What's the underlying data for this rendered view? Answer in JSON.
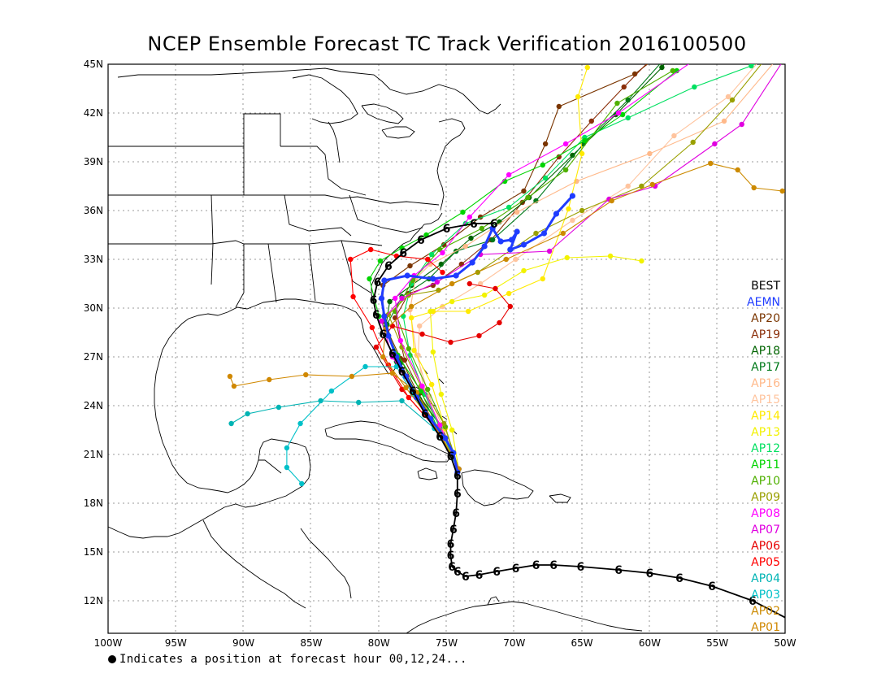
{
  "title": "NCEP Ensemble Forecast TC Track Verification 2016100500",
  "footnote": "Indicates a position at forecast hour 00,12,24...",
  "axes": {
    "x_ticks": [
      "100W",
      "95W",
      "90W",
      "85W",
      "80W",
      "75W",
      "70W",
      "65W",
      "60W",
      "55W",
      "50W"
    ],
    "y_ticks": [
      "45N",
      "42N",
      "39N",
      "36N",
      "33N",
      "30N",
      "27N",
      "24N",
      "21N",
      "18N",
      "15N",
      "12N"
    ]
  },
  "legend": [
    {
      "label": "BEST",
      "color": "#000000"
    },
    {
      "label": "AEMN",
      "color": "#1f3cff"
    },
    {
      "label": "AP20",
      "color": "#7a3500"
    },
    {
      "label": "AP19",
      "color": "#8b2f0a"
    },
    {
      "label": "AP18",
      "color": "#006400"
    },
    {
      "label": "AP17",
      "color": "#007a1a"
    },
    {
      "label": "AP16",
      "color": "#ffb98a"
    },
    {
      "label": "AP15",
      "color": "#ffc49e"
    },
    {
      "label": "AP14",
      "color": "#ffea00"
    },
    {
      "label": "AP13",
      "color": "#f2f200"
    },
    {
      "label": "AP12",
      "color": "#00e060"
    },
    {
      "label": "AP11",
      "color": "#00d400"
    },
    {
      "label": "AP10",
      "color": "#4fb000"
    },
    {
      "label": "AP09",
      "color": "#9aa000"
    },
    {
      "label": "AP08",
      "color": "#ff00ff"
    },
    {
      "label": "AP07",
      "color": "#e000e0"
    },
    {
      "label": "AP06",
      "color": "#e60000"
    },
    {
      "label": "AP05",
      "color": "#ff0000"
    },
    {
      "label": "AP04",
      "color": "#00b4b4"
    },
    {
      "label": "AP03",
      "color": "#00c0c8"
    },
    {
      "label": "AP02",
      "color": "#cc8a00"
    },
    {
      "label": "AP01",
      "color": "#d08800"
    }
  ],
  "tracks": {
    "BEST": [
      [
        -49.6,
        10.8
      ],
      [
        -52.4,
        12.0
      ],
      [
        -55.4,
        12.9
      ],
      [
        -57.8,
        13.4
      ],
      [
        -60.0,
        13.7
      ],
      [
        -62.3,
        13.9
      ],
      [
        -65.1,
        14.1
      ],
      [
        -67.1,
        14.2
      ],
      [
        -68.4,
        14.2
      ],
      [
        -69.9,
        14.0
      ],
      [
        -71.3,
        13.8
      ],
      [
        -72.6,
        13.6
      ],
      [
        -73.6,
        13.5
      ],
      [
        -74.2,
        13.8
      ],
      [
        -74.6,
        14.1
      ],
      [
        -74.7,
        14.8
      ],
      [
        -74.7,
        15.5
      ],
      [
        -74.5,
        16.4
      ],
      [
        -74.3,
        17.4
      ],
      [
        -74.2,
        18.6
      ],
      [
        -74.2,
        19.7
      ],
      [
        -74.7,
        20.9
      ],
      [
        -75.5,
        22.1
      ],
      [
        -76.6,
        23.5
      ],
      [
        -77.5,
        24.9
      ],
      [
        -78.3,
        26.1
      ],
      [
        -79.0,
        27.2
      ],
      [
        -79.7,
        28.4
      ],
      [
        -80.2,
        29.6
      ],
      [
        -80.4,
        30.5
      ],
      [
        -80.1,
        31.6
      ],
      [
        -79.3,
        32.6
      ],
      [
        -78.2,
        33.4
      ],
      [
        -76.9,
        34.2
      ],
      [
        -75.0,
        34.9
      ],
      [
        -73.0,
        35.2
      ],
      [
        -71.5,
        35.2
      ]
    ],
    "AEMN": [
      [
        -74.2,
        19.9
      ],
      [
        -74.5,
        21.1
      ],
      [
        -75.1,
        22.0
      ],
      [
        -76.2,
        23.2
      ],
      [
        -77.2,
        24.5
      ],
      [
        -78.0,
        25.8
      ],
      [
        -78.7,
        27.0
      ],
      [
        -79.3,
        28.3
      ],
      [
        -79.6,
        29.5
      ],
      [
        -79.8,
        30.6
      ],
      [
        -79.6,
        31.7
      ],
      [
        -77.9,
        32.0
      ],
      [
        -76.0,
        31.8
      ],
      [
        -74.3,
        32.0
      ],
      [
        -73.1,
        32.8
      ],
      [
        -72.2,
        33.8
      ],
      [
        -71.6,
        34.9
      ],
      [
        -71.0,
        34.1
      ],
      [
        -70.2,
        34.2
      ],
      [
        -69.8,
        34.7
      ],
      [
        -70.3,
        33.6
      ],
      [
        -69.3,
        33.9
      ],
      [
        -67.8,
        34.6
      ],
      [
        -66.9,
        35.8
      ],
      [
        -65.7,
        36.9
      ]
    ],
    "AP01": [
      [
        -74.1,
        20.1
      ],
      [
        -75.6,
        22.5
      ],
      [
        -77.2,
        24.8
      ],
      [
        -79.0,
        26.0
      ],
      [
        -82.0,
        25.8
      ],
      [
        -85.4,
        25.9
      ],
      [
        -88.1,
        25.6
      ],
      [
        -90.7,
        25.2
      ],
      [
        -91.0,
        25.8
      ]
    ],
    "AP02": [
      [
        -74.1,
        20.1
      ],
      [
        -75.8,
        22.7
      ],
      [
        -78.0,
        25.1
      ],
      [
        -79.7,
        27.0
      ],
      [
        -79.5,
        28.7
      ],
      [
        -77.6,
        30.1
      ],
      [
        -74.6,
        31.5
      ],
      [
        -70.6,
        33.0
      ],
      [
        -66.4,
        34.6
      ],
      [
        -62.8,
        36.6
      ],
      [
        -59.8,
        37.6
      ],
      [
        -55.5,
        38.9
      ],
      [
        -53.5,
        38.5
      ],
      [
        -52.3,
        37.4
      ],
      [
        -50.2,
        37.2
      ]
    ],
    "AP03": [
      [
        -74.1,
        20.1
      ],
      [
        -75.9,
        22.6
      ],
      [
        -77.5,
        24.7
      ],
      [
        -78.7,
        26.4
      ],
      [
        -81.0,
        26.4
      ],
      [
        -83.5,
        24.9
      ],
      [
        -85.8,
        22.9
      ],
      [
        -86.8,
        21.4
      ],
      [
        -86.8,
        20.2
      ],
      [
        -85.7,
        19.2
      ]
    ],
    "AP04": [
      [
        -74.1,
        20.1
      ],
      [
        -75.9,
        22.6
      ],
      [
        -78.3,
        24.3
      ],
      [
        -81.5,
        24.2
      ],
      [
        -84.3,
        24.3
      ],
      [
        -87.4,
        23.9
      ],
      [
        -89.7,
        23.5
      ],
      [
        -90.9,
        22.9
      ]
    ],
    "AP05": [
      [
        -74.1,
        20.1
      ],
      [
        -75.8,
        22.6
      ],
      [
        -77.8,
        24.5
      ],
      [
        -79.3,
        26.5
      ],
      [
        -80.5,
        28.8
      ],
      [
        -81.9,
        30.7
      ],
      [
        -82.1,
        33.0
      ],
      [
        -80.6,
        33.6
      ],
      [
        -78.7,
        33.2
      ],
      [
        -76.4,
        33.0
      ],
      [
        -75.3,
        32.2
      ]
    ],
    "AP06": [
      [
        -74.1,
        20.1
      ],
      [
        -75.9,
        22.7
      ],
      [
        -78.3,
        25.0
      ],
      [
        -80.2,
        27.6
      ],
      [
        -79.0,
        28.9
      ],
      [
        -76.8,
        28.4
      ],
      [
        -74.7,
        27.9
      ],
      [
        -72.6,
        28.3
      ],
      [
        -71.1,
        29.1
      ],
      [
        -70.3,
        30.1
      ],
      [
        -71.4,
        31.2
      ],
      [
        -73.3,
        31.5
      ]
    ],
    "AP07": [
      [
        -74.1,
        20.1
      ],
      [
        -75.8,
        22.7
      ],
      [
        -77.4,
        24.8
      ],
      [
        -79.0,
        27.0
      ],
      [
        -79.8,
        29.2
      ],
      [
        -78.3,
        30.6
      ],
      [
        -75.7,
        31.6
      ],
      [
        -72.5,
        33.3
      ],
      [
        -67.4,
        33.5
      ],
      [
        -63.0,
        36.7
      ],
      [
        -59.6,
        37.5
      ],
      [
        -55.2,
        40.1
      ],
      [
        -53.2,
        41.3
      ],
      [
        -50.0,
        45.4
      ]
    ],
    "AP08": [
      [
        -74.1,
        20.1
      ],
      [
        -75.5,
        22.8
      ],
      [
        -76.8,
        25.2
      ],
      [
        -78.4,
        28.0
      ],
      [
        -78.8,
        30.6
      ],
      [
        -77.4,
        32.0
      ],
      [
        -75.3,
        33.4
      ],
      [
        -73.3,
        35.6
      ],
      [
        -70.4,
        38.2
      ],
      [
        -66.2,
        40.1
      ],
      [
        -62.3,
        42.0
      ],
      [
        -56.8,
        45.2
      ],
      [
        -54.4,
        46.9
      ]
    ],
    "AP09": [
      [
        -74.1,
        20.1
      ],
      [
        -75.2,
        22.9
      ],
      [
        -76.9,
        25.2
      ],
      [
        -78.3,
        27.6
      ],
      [
        -79.3,
        29.6
      ],
      [
        -77.8,
        30.8
      ],
      [
        -75.6,
        31.1
      ],
      [
        -72.7,
        32.2
      ],
      [
        -68.4,
        34.6
      ],
      [
        -65.0,
        36.0
      ],
      [
        -60.6,
        37.5
      ],
      [
        -56.8,
        40.2
      ],
      [
        -53.9,
        42.8
      ],
      [
        -50.4,
        46.4
      ]
    ],
    "AP10": [
      [
        -74.1,
        20.1
      ],
      [
        -75.1,
        22.7
      ],
      [
        -76.4,
        25.0
      ],
      [
        -77.8,
        27.5
      ],
      [
        -78.8,
        29.8
      ],
      [
        -77.5,
        31.7
      ],
      [
        -75.5,
        33.6
      ],
      [
        -72.4,
        34.9
      ],
      [
        -69.0,
        36.8
      ],
      [
        -66.2,
        38.5
      ],
      [
        -62.4,
        42.6
      ],
      [
        -58.3,
        44.6
      ]
    ],
    "AP11": [
      [
        -74.1,
        20.1
      ],
      [
        -75.6,
        22.5
      ],
      [
        -76.9,
        24.9
      ],
      [
        -78.6,
        27.1
      ],
      [
        -80.0,
        29.5
      ],
      [
        -80.7,
        31.8
      ],
      [
        -79.9,
        32.9
      ],
      [
        -78.3,
        33.7
      ],
      [
        -76.5,
        34.5
      ],
      [
        -73.8,
        35.9
      ],
      [
        -70.7,
        37.8
      ],
      [
        -67.9,
        38.8
      ],
      [
        -64.8,
        40.3
      ],
      [
        -62.0,
        41.9
      ],
      [
        -58.0,
        44.6
      ]
    ],
    "AP12": [
      [
        -74.1,
        20.1
      ],
      [
        -75.5,
        22.6
      ],
      [
        -76.6,
        24.7
      ],
      [
        -77.7,
        27.1
      ],
      [
        -78.2,
        29.5
      ],
      [
        -77.6,
        31.5
      ],
      [
        -76.1,
        33.3
      ],
      [
        -73.6,
        35.2
      ],
      [
        -70.4,
        36.2
      ],
      [
        -67.7,
        38.0
      ],
      [
        -64.8,
        40.5
      ],
      [
        -61.6,
        41.7
      ],
      [
        -56.7,
        43.6
      ],
      [
        -52.5,
        44.9
      ],
      [
        -50.2,
        45.9
      ]
    ],
    "AP13": [
      [
        -74.1,
        20.1
      ],
      [
        -74.6,
        22.5
      ],
      [
        -75.4,
        24.7
      ],
      [
        -76.0,
        27.3
      ],
      [
        -76.2,
        29.8
      ],
      [
        -74.6,
        30.4
      ],
      [
        -72.2,
        30.8
      ],
      [
        -69.3,
        32.3
      ],
      [
        -66.1,
        33.1
      ],
      [
        -62.9,
        33.2
      ],
      [
        -60.6,
        32.9
      ]
    ],
    "AP14": [
      [
        -74.1,
        20.1
      ],
      [
        -75.1,
        22.6
      ],
      [
        -76.1,
        25.3
      ],
      [
        -77.4,
        27.4
      ],
      [
        -77.6,
        29.4
      ],
      [
        -76.0,
        29.8
      ],
      [
        -73.4,
        29.8
      ],
      [
        -70.4,
        30.9
      ],
      [
        -67.9,
        31.8
      ],
      [
        -66.0,
        36.1
      ],
      [
        -65.0,
        39.5
      ],
      [
        -65.3,
        43.0
      ],
      [
        -64.6,
        44.8
      ]
    ],
    "AP15": [
      [
        -74.1,
        20.1
      ],
      [
        -75.6,
        22.8
      ],
      [
        -76.7,
        25.0
      ],
      [
        -77.1,
        27.1
      ],
      [
        -77.0,
        28.9
      ],
      [
        -75.3,
        30.1
      ],
      [
        -72.5,
        31.5
      ],
      [
        -69.9,
        33.0
      ],
      [
        -65.7,
        35.4
      ],
      [
        -61.6,
        37.5
      ],
      [
        -58.2,
        40.6
      ],
      [
        -54.2,
        43.0
      ],
      [
        -51.6,
        45.5
      ],
      [
        -48.8,
        48.0
      ]
    ],
    "AP16": [
      [
        -74.1,
        20.1
      ],
      [
        -75.2,
        22.5
      ],
      [
        -76.3,
        24.6
      ],
      [
        -77.2,
        27.1
      ],
      [
        -77.7,
        29.9
      ],
      [
        -77.3,
        31.8
      ],
      [
        -76.2,
        32.7
      ],
      [
        -73.6,
        33.8
      ],
      [
        -69.8,
        35.9
      ],
      [
        -65.4,
        37.8
      ],
      [
        -60.0,
        39.5
      ],
      [
        -54.5,
        41.5
      ],
      [
        -49.4,
        46.5
      ]
    ],
    "AP17": [
      [
        -74.1,
        20.1
      ],
      [
        -75.3,
        22.6
      ],
      [
        -77.1,
        24.6
      ],
      [
        -78.7,
        26.7
      ],
      [
        -79.4,
        29.0
      ],
      [
        -78.3,
        30.7
      ],
      [
        -76.3,
        31.8
      ],
      [
        -74.3,
        33.5
      ],
      [
        -71.6,
        34.2
      ],
      [
        -68.4,
        36.6
      ],
      [
        -64.9,
        40.1
      ],
      [
        -61.6,
        42.8
      ],
      [
        -58.2,
        46.0
      ]
    ],
    "AP18": [
      [
        -74.1,
        20.1
      ],
      [
        -75.6,
        22.5
      ],
      [
        -77.0,
        24.4
      ],
      [
        -78.4,
        26.6
      ],
      [
        -79.5,
        28.8
      ],
      [
        -79.2,
        30.4
      ],
      [
        -77.6,
        31.4
      ],
      [
        -75.4,
        32.7
      ],
      [
        -73.2,
        34.3
      ],
      [
        -71.1,
        35.3
      ],
      [
        -68.9,
        36.8
      ],
      [
        -65.7,
        39.4
      ],
      [
        -62.5,
        41.9
      ],
      [
        -59.1,
        44.8
      ],
      [
        -56.9,
        47.3
      ]
    ],
    "AP19": [
      [
        -74.1,
        20.1
      ],
      [
        -75.3,
        22.6
      ],
      [
        -76.9,
        24.8
      ],
      [
        -78.1,
        26.8
      ],
      [
        -78.8,
        29.4
      ],
      [
        -77.8,
        30.9
      ],
      [
        -76.0,
        31.4
      ],
      [
        -73.9,
        32.7
      ],
      [
        -71.7,
        34.2
      ],
      [
        -69.4,
        36.5
      ],
      [
        -66.7,
        39.3
      ],
      [
        -64.3,
        41.5
      ],
      [
        -61.9,
        43.6
      ],
      [
        -58.5,
        46.5
      ]
    ],
    "AP20": [
      [
        -74.1,
        20.1
      ],
      [
        -75.3,
        22.6
      ],
      [
        -77.1,
        24.7
      ],
      [
        -78.4,
        26.9
      ],
      [
        -79.7,
        29.2
      ],
      [
        -79.7,
        31.4
      ],
      [
        -77.7,
        32.6
      ],
      [
        -75.2,
        33.9
      ],
      [
        -72.5,
        35.6
      ],
      [
        -69.3,
        37.2
      ],
      [
        -67.7,
        40.1
      ],
      [
        -66.7,
        42.4
      ],
      [
        -61.1,
        44.4
      ],
      [
        -58.0,
        46.4
      ]
    ]
  }
}
